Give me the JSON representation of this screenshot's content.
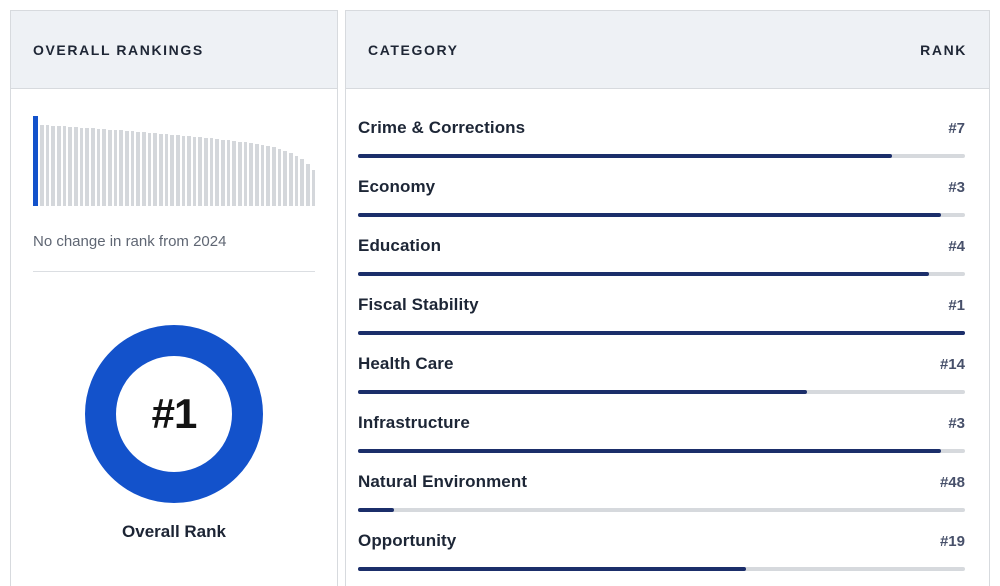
{
  "brand": {
    "blue": "#1352cb",
    "navy": "#1b2e6a",
    "track_gray": "#d6d9dd",
    "spark_gray": "#d4d7db",
    "header_bg": "#eef1f5"
  },
  "left_panel": {
    "header": "OVERALL RANKINGS",
    "change_note": "No change in rank from 2024",
    "overall_rank": "#1",
    "overall_rank_label": "Overall Rank"
  },
  "right_panel": {
    "header_category": "CATEGORY",
    "header_rank": "RANK",
    "rows": [
      {
        "label": "Crime & Corrections",
        "rank": "#7",
        "fill_pct": 88
      },
      {
        "label": "Economy",
        "rank": "#3",
        "fill_pct": 96
      },
      {
        "label": "Education",
        "rank": "#4",
        "fill_pct": 94
      },
      {
        "label": "Fiscal Stability",
        "rank": "#1",
        "fill_pct": 100
      },
      {
        "label": "Health Care",
        "rank": "#14",
        "fill_pct": 74
      },
      {
        "label": "Infrastructure",
        "rank": "#3",
        "fill_pct": 96
      },
      {
        "label": "Natural Environment",
        "rank": "#48",
        "fill_pct": 6
      },
      {
        "label": "Opportunity",
        "rank": "#19",
        "fill_pct": 64
      }
    ]
  },
  "chart_data": [
    {
      "type": "bar",
      "title": "Overall Rankings sparkline (all 50 states, highlighted bar = this state at rank 1)",
      "highlight_index": 0,
      "highlight_color": "#1352cb",
      "bar_color": "#d4d7db",
      "values": [
        90,
        81,
        81,
        80,
        80,
        80,
        79,
        79,
        78,
        78,
        78,
        77,
        77,
        76,
        76,
        76,
        75,
        75,
        74,
        74,
        73,
        73,
        72,
        72,
        71,
        71,
        70,
        70,
        69,
        69,
        68,
        68,
        67,
        66,
        66,
        65,
        64,
        64,
        63,
        62,
        61,
        60,
        59,
        57,
        55,
        53,
        50,
        47,
        42,
        36
      ],
      "ylim": [
        0,
        90
      ],
      "annotation": "No change in rank from 2024"
    },
    {
      "type": "pie",
      "title": "Overall Rank",
      "style": "donut",
      "values": [
        100
      ],
      "center_label": "#1",
      "color": "#1352cb"
    },
    {
      "type": "bar",
      "title": "Category ranks (bar fill = (51 - rank) / 50 of track width)",
      "categories": [
        "Crime & Corrections",
        "Economy",
        "Education",
        "Fiscal Stability",
        "Health Care",
        "Infrastructure",
        "Natural Environment",
        "Opportunity"
      ],
      "values": [
        7,
        3,
        4,
        1,
        14,
        3,
        48,
        19
      ],
      "value_labels": [
        "#7",
        "#3",
        "#4",
        "#1",
        "#14",
        "#3",
        "#48",
        "#19"
      ],
      "xlabel": "CATEGORY",
      "ylabel": "RANK",
      "xlim_rank": [
        1,
        50
      ]
    }
  ]
}
